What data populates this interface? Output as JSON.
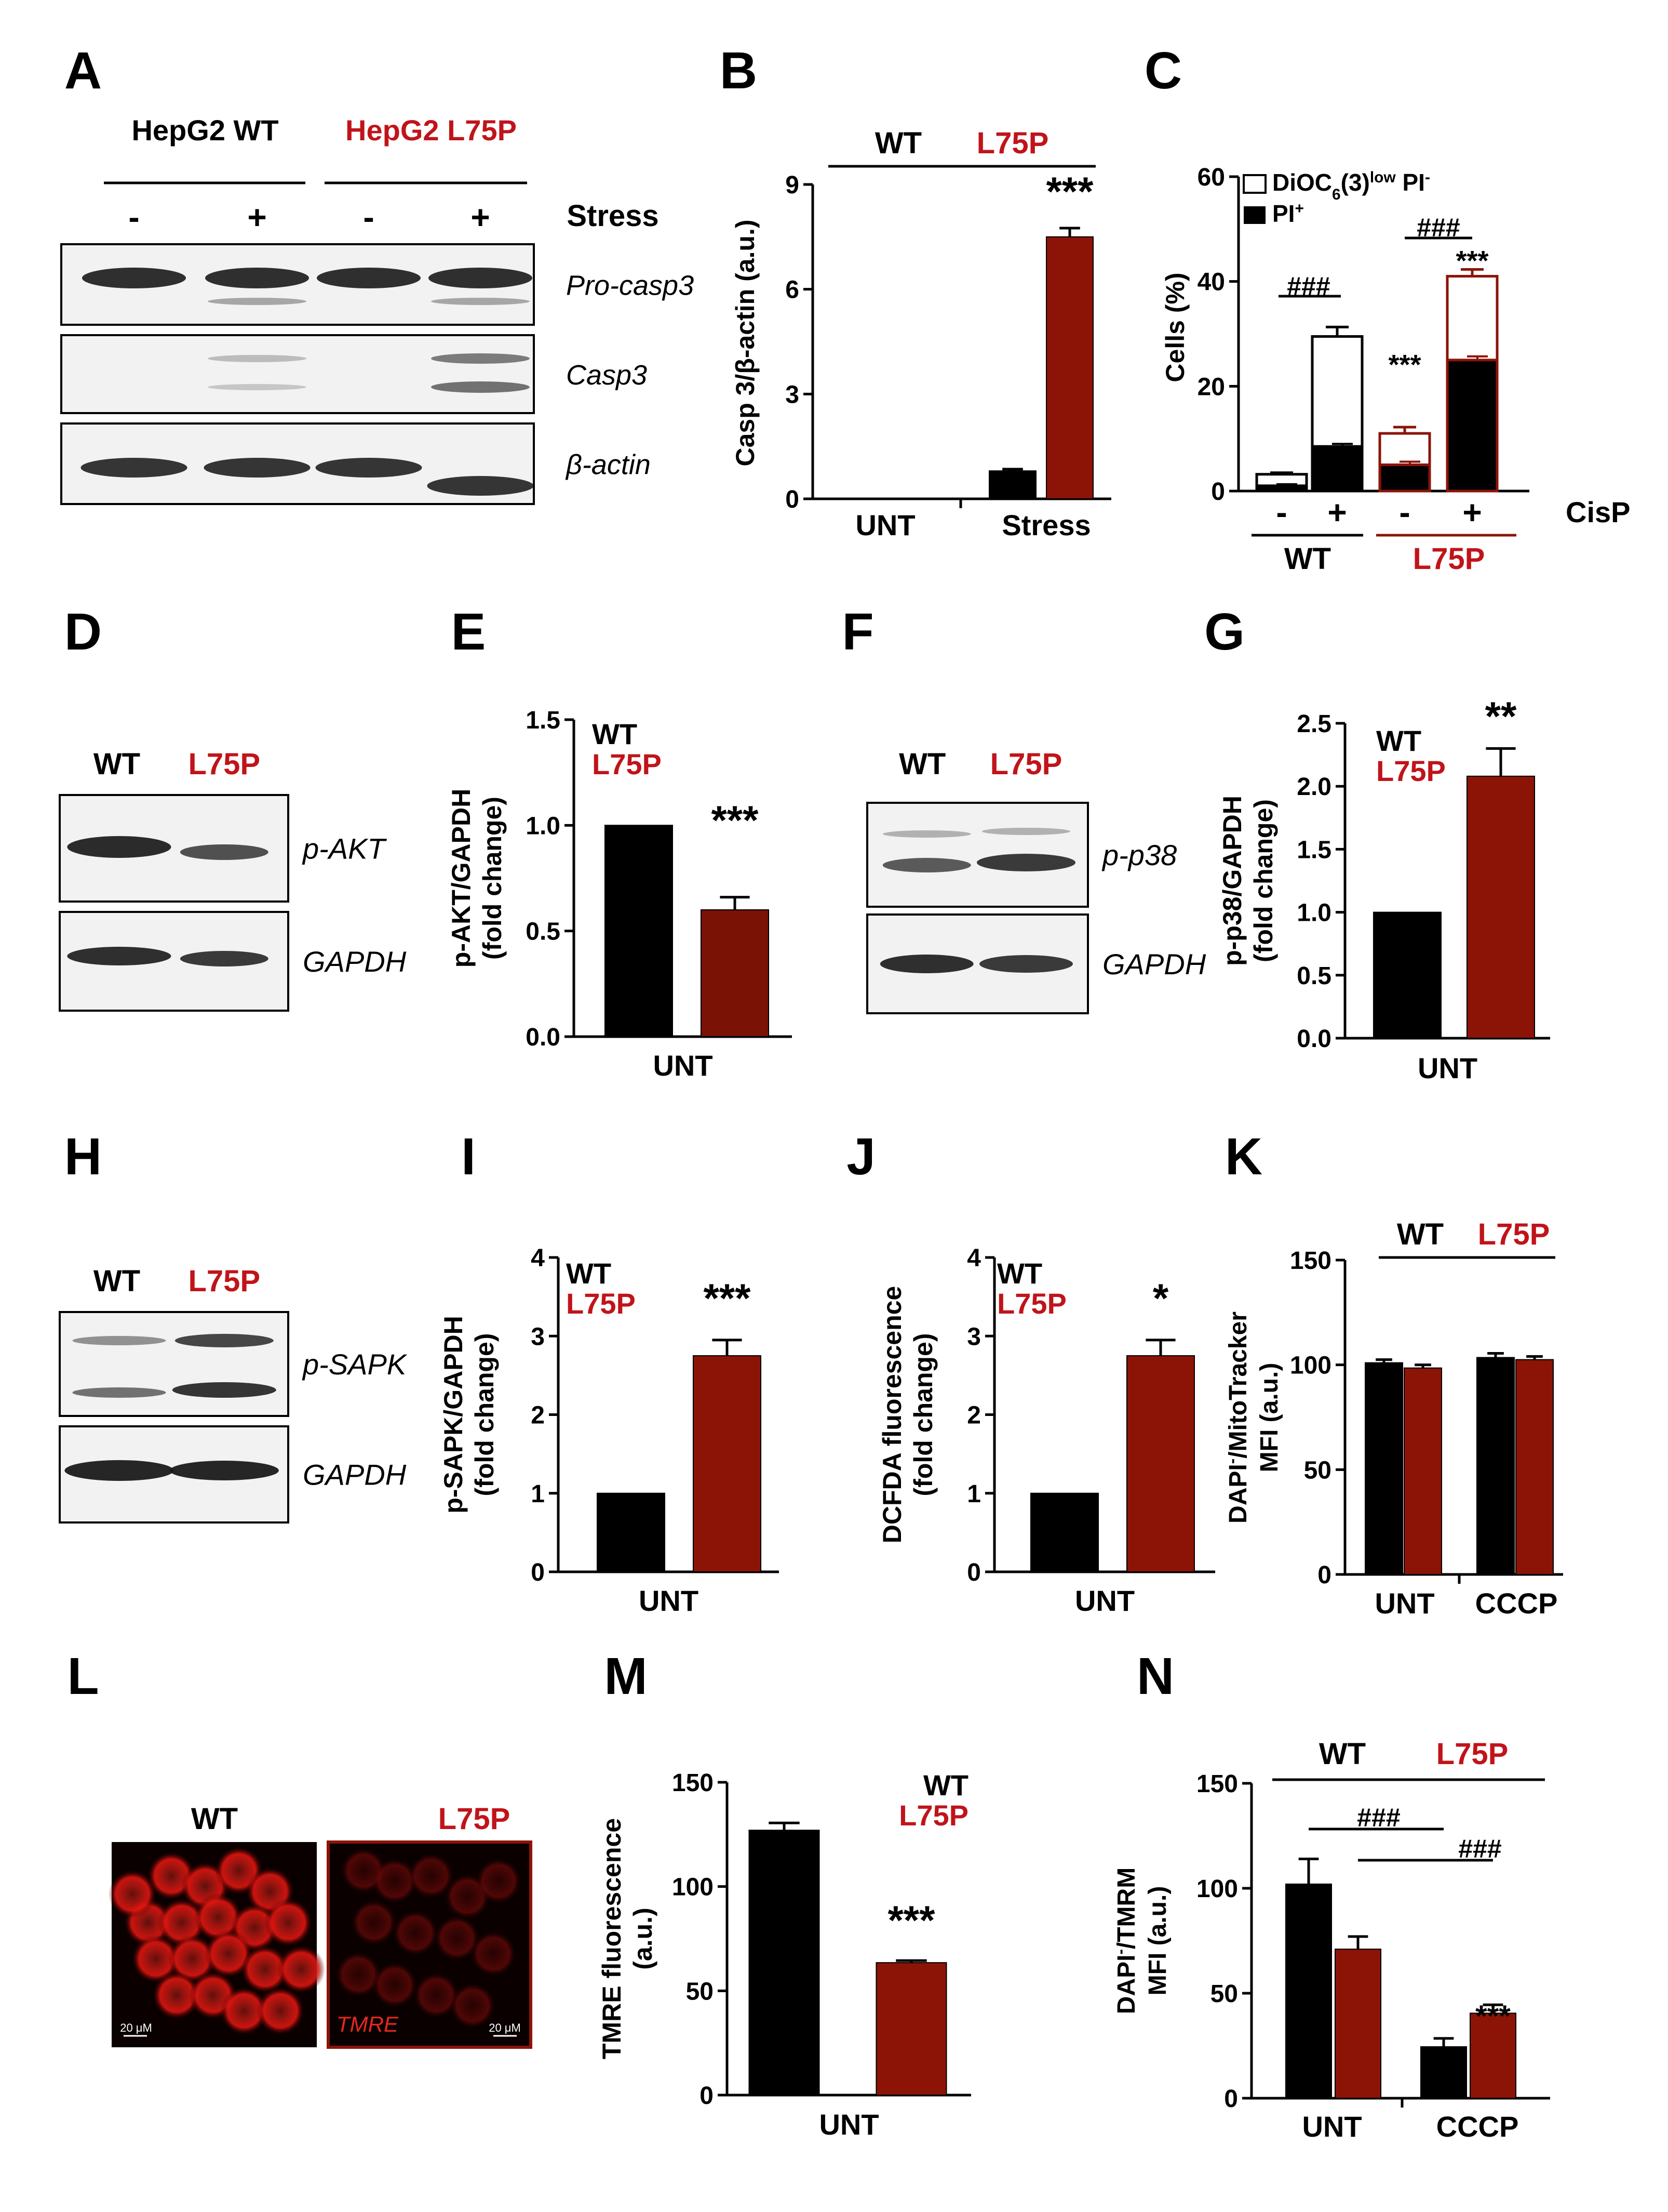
{
  "colors": {
    "wt": "#000000",
    "mut": "#8b1407",
    "mut_dark": "#7a1206",
    "text_red": "#c0141a",
    "blot_band": "#1a1a1a",
    "blot_bg": "#f2f2f2"
  },
  "panels": [
    "A",
    "B",
    "C",
    "D",
    "E",
    "F",
    "G",
    "H",
    "I",
    "J",
    "K",
    "L",
    "M",
    "N"
  ],
  "blot_A": {
    "group_wt": "HepG2 WT",
    "group_mut": "HepG2 L75P",
    "signs": [
      "-",
      "+",
      "-",
      "+"
    ],
    "stress_label": "Stress",
    "rows": [
      "Pro-casp3",
      "Casp3",
      "β-actin"
    ]
  },
  "blot_D": {
    "lanes": [
      "WT",
      "L75P"
    ],
    "rows": [
      "p-AKT",
      "GAPDH"
    ]
  },
  "blot_F": {
    "lanes": [
      "WT",
      "L75P"
    ],
    "rows": [
      "p-p38",
      "GAPDH"
    ]
  },
  "blot_H": {
    "lanes": [
      "WT",
      "L75P"
    ],
    "rows": [
      "p-SAPK",
      "GAPDH"
    ]
  },
  "image_L": {
    "wt": "WT",
    "mut": "L75P",
    "stain": "TMRE",
    "scale_wt": "20 μM",
    "scale_mut": "20 μM"
  },
  "chart_data": [
    {
      "panel": "B",
      "type": "bar",
      "categories": [
        "UNT",
        "Stress"
      ],
      "ylabel": "Casp 3/β-actin (a.u.)",
      "yticks": [
        "0",
        "3",
        "6",
        "9"
      ],
      "ylim": [
        0,
        9
      ],
      "header": [
        "WT",
        "L75P"
      ],
      "series": [
        {
          "name": "WT",
          "values": [
            0,
            0.8
          ],
          "errors": [
            0,
            0.05
          ]
        },
        {
          "name": "L75P",
          "values": [
            0,
            7.5
          ],
          "errors": [
            0,
            0.25
          ]
        }
      ],
      "annotations": [
        "***"
      ]
    },
    {
      "panel": "C",
      "type": "bar",
      "stacked": true,
      "categories": [
        "-",
        "+",
        "-",
        "+"
      ],
      "ylabel": "Cells (%)",
      "yticks": [
        "0",
        "20",
        "40",
        "60"
      ],
      "ylim": [
        0,
        60
      ],
      "legend": [
        "DiOC",
        "6",
        "(3)",
        "low",
        " PI",
        "-",
        "PI",
        "+"
      ],
      "xlabel": "CisP",
      "groups": [
        "WT",
        "L75P"
      ],
      "series": [
        {
          "name": "PI+",
          "values": [
            1,
            8.5,
            5,
            25
          ],
          "errors": [
            0.3,
            0.5,
            0.6,
            0.7
          ]
        },
        {
          "name": "DiOC6(3)low PI-",
          "values": [
            2.2,
            21,
            6,
            16
          ],
          "errors": [
            0.3,
            1.8,
            1.2,
            1.3
          ]
        }
      ],
      "annotations": [
        "###",
        "###",
        "***",
        "***"
      ]
    },
    {
      "panel": "E",
      "type": "bar",
      "categories": [
        "UNT"
      ],
      "ylabel": [
        "p-AKT/GAPDH",
        "(fold change)"
      ],
      "yticks": [
        "0.0",
        "0.5",
        "1.0",
        "1.5"
      ],
      "ylim": [
        0,
        1.5
      ],
      "legend": [
        "WT",
        "L75P"
      ],
      "series": [
        {
          "name": "WT",
          "values": [
            1.0
          ],
          "errors": [
            0
          ]
        },
        {
          "name": "L75P",
          "values": [
            0.6
          ],
          "errors": [
            0.06
          ]
        }
      ],
      "annotations": [
        "***"
      ]
    },
    {
      "panel": "G",
      "type": "bar",
      "categories": [
        "UNT"
      ],
      "ylabel": [
        "p-p38/GAPDH",
        "(fold change)"
      ],
      "yticks": [
        "0.0",
        "0.5",
        "1.0",
        "1.5",
        "2.0",
        "2.5"
      ],
      "ylim": [
        0,
        2.5
      ],
      "legend": [
        "WT",
        "L75P"
      ],
      "series": [
        {
          "name": "WT",
          "values": [
            1.0
          ],
          "errors": [
            0
          ]
        },
        {
          "name": "L75P",
          "values": [
            2.08
          ],
          "errors": [
            0.22
          ]
        }
      ],
      "annotations": [
        "**"
      ]
    },
    {
      "panel": "I",
      "type": "bar",
      "categories": [
        "UNT"
      ],
      "ylabel": [
        "p-SAPK/GAPDH",
        "(fold change)"
      ],
      "yticks": [
        "0",
        "1",
        "2",
        "3",
        "4"
      ],
      "ylim": [
        0,
        4
      ],
      "legend": [
        "WT",
        "L75P"
      ],
      "series": [
        {
          "name": "WT",
          "values": [
            1.0
          ],
          "errors": [
            0
          ]
        },
        {
          "name": "L75P",
          "values": [
            2.75
          ],
          "errors": [
            0.2
          ]
        }
      ],
      "annotations": [
        "***"
      ]
    },
    {
      "panel": "J",
      "type": "bar",
      "categories": [
        "UNT"
      ],
      "ylabel": [
        "DCFDA fluorescence",
        "(fold change)"
      ],
      "yticks": [
        "0",
        "1",
        "2",
        "3",
        "4"
      ],
      "ylim": [
        0,
        4
      ],
      "legend": [
        "WT",
        "L75P"
      ],
      "series": [
        {
          "name": "WT",
          "values": [
            1.0
          ],
          "errors": [
            0
          ]
        },
        {
          "name": "L75P",
          "values": [
            2.75
          ],
          "errors": [
            0.2
          ]
        }
      ],
      "annotations": [
        "*"
      ]
    },
    {
      "panel": "K",
      "type": "bar",
      "categories": [
        "UNT",
        "CCCP"
      ],
      "ylabel": [
        "DAPI",
        "-",
        "/MitoTracker",
        "MFI (a.u.)"
      ],
      "yticks": [
        "0",
        "50",
        "100",
        "150"
      ],
      "ylim": [
        0,
        150
      ],
      "header": [
        "WT",
        "L75P"
      ],
      "series": [
        {
          "name": "WT",
          "values": [
            101,
            103.5
          ],
          "errors": [
            1.5,
            2
          ]
        },
        {
          "name": "L75P",
          "values": [
            98.5,
            102.5
          ],
          "errors": [
            1.5,
            1.5
          ]
        }
      ]
    },
    {
      "panel": "M",
      "type": "bar",
      "categories": [
        "UNT"
      ],
      "ylabel": [
        "TMRE fluorescence",
        "(a.u.)"
      ],
      "yticks": [
        "0",
        "50",
        "100",
        "150"
      ],
      "ylim": [
        0,
        150
      ],
      "legend": [
        "WT",
        "L75P"
      ],
      "series": [
        {
          "name": "WT",
          "values": [
            127
          ],
          "errors": [
            3.5
          ]
        },
        {
          "name": "L75P",
          "values": [
            63.5
          ],
          "errors": [
            1
          ]
        }
      ],
      "annotations": [
        "***"
      ]
    },
    {
      "panel": "N",
      "type": "bar",
      "categories": [
        "UNT",
        "CCCP"
      ],
      "ylabel": [
        "DAPI",
        "-",
        "/TMRM",
        "MFI (a.u.)"
      ],
      "yticks": [
        "0",
        "50",
        "100",
        "150"
      ],
      "ylim": [
        0,
        150
      ],
      "header": [
        "WT",
        "L75P"
      ],
      "series": [
        {
          "name": "WT",
          "values": [
            102,
            24.5
          ],
          "errors": [
            12,
            4
          ]
        },
        {
          "name": "L75P",
          "values": [
            71,
            40.5
          ],
          "errors": [
            6,
            4
          ]
        }
      ],
      "annotations": [
        "###",
        "###",
        "***"
      ]
    }
  ]
}
